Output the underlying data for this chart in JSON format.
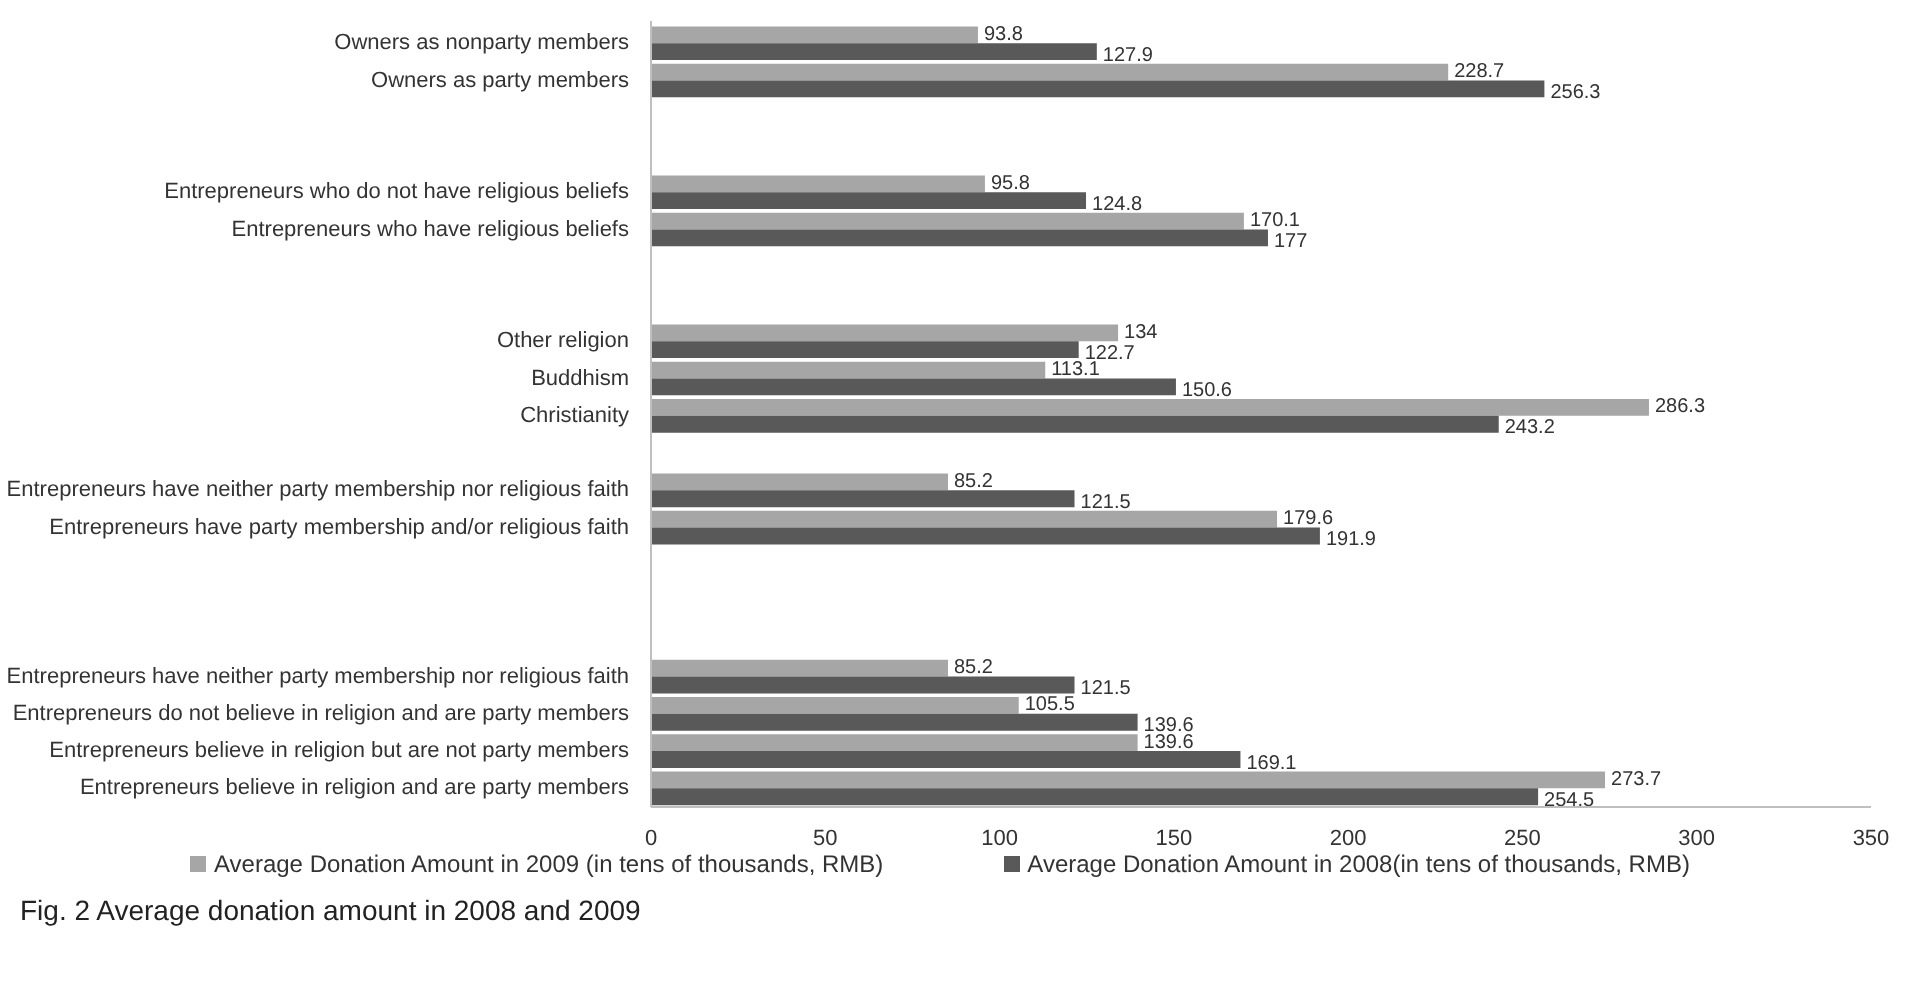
{
  "chart_data": {
    "type": "bar",
    "orientation": "horizontal",
    "title": "Fig. 2 Average donation amount in 2008 and 2009",
    "categories": [
      "Owners as nonparty members",
      "Owners as party members",
      null,
      null,
      "Entrepreneurs who do not have religious beliefs",
      "Entrepreneurs who have religious beliefs",
      null,
      null,
      "Other religion",
      "Buddhism",
      "Christianity",
      null,
      "Entrepreneurs have neither party membership nor religious faith",
      "Entrepreneurs have party membership and/or religious faith",
      null,
      null,
      null,
      "Entrepreneurs have neither party membership nor religious faith",
      "Entrepreneurs do not believe in religion and are party members",
      "Entrepreneurs believe in religion but are not party members",
      "Entrepreneurs believe in religion and are party members"
    ],
    "series": [
      {
        "name": "Average Donation Amount in 2009 (in tens of thousands, RMB)",
        "color": "#a6a6a6",
        "values": [
          93.8,
          228.7,
          null,
          null,
          95.8,
          170.1,
          null,
          null,
          134,
          113.1,
          286.3,
          null,
          85.2,
          179.6,
          null,
          null,
          null,
          85.2,
          105.5,
          139.6,
          273.7
        ]
      },
      {
        "name": "Average Donation Amount in 2008(in tens of thousands, RMB)",
        "color": "#595959",
        "values": [
          127.9,
          256.3,
          null,
          null,
          124.8,
          177,
          null,
          null,
          122.7,
          150.6,
          243.2,
          null,
          121.5,
          191.9,
          null,
          null,
          null,
          121.5,
          139.6,
          169.1,
          254.5
        ]
      }
    ],
    "xlim": [
      0,
      350
    ],
    "xticks": [
      0,
      50,
      100,
      150,
      200,
      250,
      300,
      350
    ],
    "data_labels": true,
    "legend": "bottom"
  }
}
